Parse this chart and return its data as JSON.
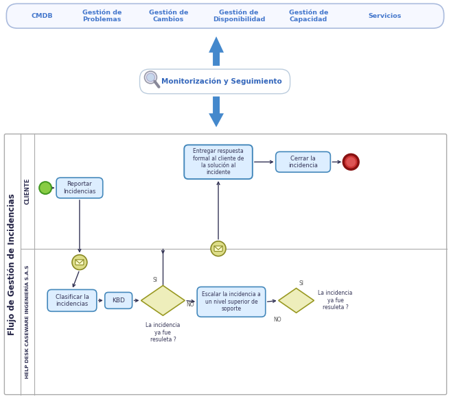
{
  "bg_color": "#ffffff",
  "top_labels": [
    "CMDB",
    "Gestión de\nProblemas",
    "Gestión de\nCambios",
    "Gestión de\nDisponibilidad",
    "Gestión de\nCapacidad",
    "Servicios"
  ],
  "top_label_color": "#4477cc",
  "monitor_text": "Monitorización y Seguimiento",
  "flow_label": "Flujo de Gestión de Incidencias",
  "lane1_label": "CLIENTE",
  "lane2_label": "HELP DESK CASEWARE INGENIERÍA S.A.S",
  "lane_border": "#aaaaaa",
  "box_fill": "#ddeeff",
  "box_border": "#4488bb",
  "box_text_color": "#333355",
  "diamond_fill": "#eeeebb",
  "diamond_border": "#999922",
  "arrow_color": "#333355",
  "email_fill": "#dddd88",
  "email_border": "#888822",
  "start_fill": "#88cc44",
  "start_border": "#449922",
  "end_fill": "#cc3333",
  "end_border": "#881111",
  "big_arrow_color": "#4488cc"
}
